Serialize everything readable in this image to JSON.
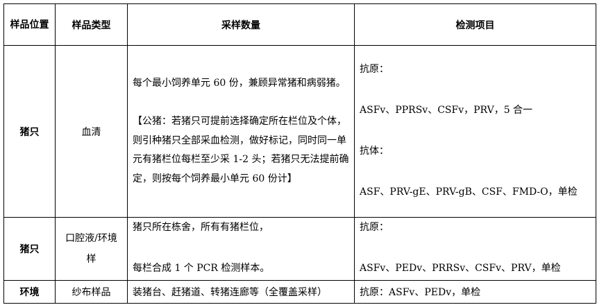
{
  "headers": [
    "样品位置",
    "样品类型",
    "采样数量",
    "检测项目"
  ],
  "rows": [
    {
      "location": "猪只",
      "type": "血清",
      "quantity": [
        "每个最小饲养单元 60 份，兼顾异常猪和病弱猪。",
        "【公猪：若猪只可提前选择确定所在栏位及个体，则引种猪只全部采血检测，做好标记，同时同一单元有猪栏位每栏至少采 1-2 头；若猪只无法提前确定，则按每个饲养最小单元 60 份计】"
      ],
      "tests": [
        "抗原：",
        "ASFv、PPRSv、CSFv，PRV，5 合一",
        "抗体：",
        "ASF、PRV-gE、PRV-gB、CSF、FMD-O，单检"
      ]
    },
    {
      "location": "猪只",
      "type": "口腔液/环境样",
      "quantity": [
        "猪只所在栋舍，所有有猪栏位，",
        "每栏合成 1 个 PCR 检测样本。"
      ],
      "tests": [
        "抗原：",
        "ASFv、PEDv、PRRSv、CSFv、PRV，单检"
      ]
    },
    {
      "location": "环境",
      "type": "纱布样品",
      "quantity": [
        "装猪台、赶猪道、转猪连廊等（全覆盖采样）"
      ],
      "tests": [
        "抗原：ASFv、PEDv，单检"
      ]
    }
  ]
}
